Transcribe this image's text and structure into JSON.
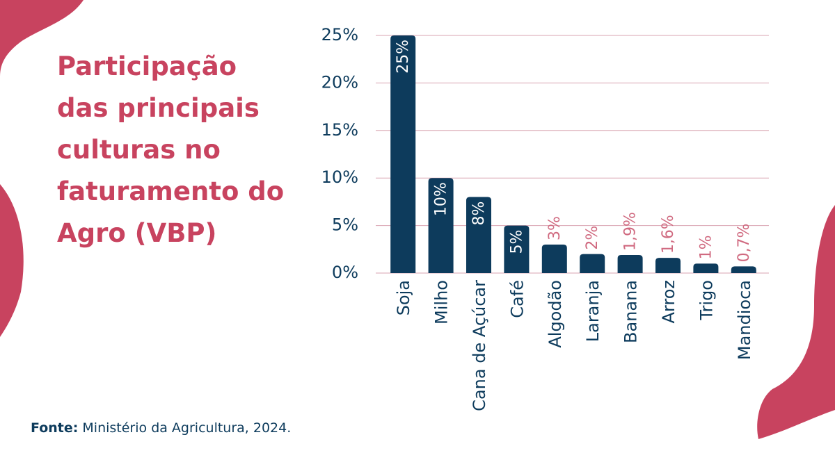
{
  "chart_data": {
    "type": "bar",
    "title": "Participação das principais culturas no faturamento do Agro (VBP)",
    "source_label": "Fonte:",
    "source": "Ministério da Agricultura, 2024.",
    "categories": [
      "Soja",
      "Milho",
      "Cana de Açúcar",
      "Café",
      "Algodão",
      "Laranja",
      "Banana",
      "Arroz",
      "Trigo",
      "Mandioca"
    ],
    "values": [
      25,
      10,
      8,
      5,
      3,
      2,
      1.9,
      1.6,
      1,
      0.7
    ],
    "value_labels": [
      "25%",
      "10%",
      "8%",
      "5%",
      "3%",
      "2%",
      "1,9%",
      "1,6%",
      "1%",
      "0,7%"
    ],
    "color": "#0d3b5c",
    "ylim": [
      0,
      25
    ],
    "yticks": [
      {
        "value": 0,
        "label": "0%"
      },
      {
        "value": 5,
        "label": "5%"
      },
      {
        "value": 10,
        "label": "10%"
      },
      {
        "value": 15,
        "label": "15%"
      },
      {
        "value": 20,
        "label": "20%"
      },
      {
        "value": 25,
        "label": "25%"
      }
    ],
    "grid": true
  }
}
